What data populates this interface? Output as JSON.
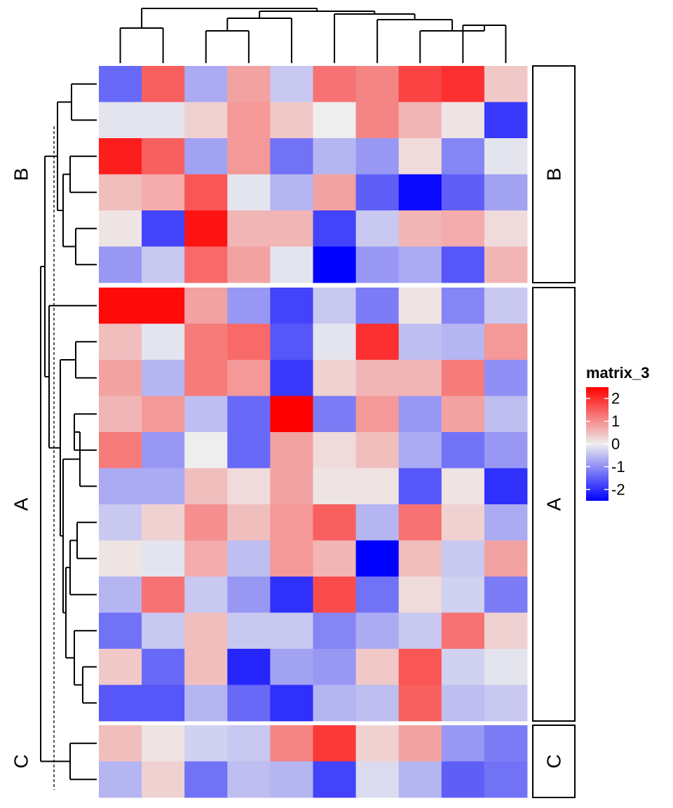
{
  "chart_data": {
    "type": "heatmap",
    "title": "",
    "n_columns": 10,
    "row_slices": [
      {
        "name": "B",
        "values": [
          [
            -1.4,
            1.5,
            -0.7,
            0.8,
            -0.4,
            1.3,
            1.1,
            1.8,
            2.0,
            0.4
          ],
          [
            -0.1,
            -0.1,
            0.3,
            0.9,
            0.4,
            0.0,
            1.1,
            0.6,
            0.1,
            -1.9
          ],
          [
            2.2,
            1.5,
            -0.8,
            0.9,
            -1.3,
            -0.6,
            -0.9,
            0.2,
            -1.1,
            -0.1
          ],
          [
            0.5,
            0.7,
            1.6,
            -0.1,
            -0.6,
            0.8,
            -1.5,
            -2.4,
            -1.5,
            -0.8
          ],
          [
            0.1,
            -1.8,
            2.3,
            0.6,
            0.6,
            -1.8,
            -0.4,
            0.6,
            0.7,
            0.2
          ],
          [
            -0.9,
            -0.4,
            1.4,
            0.8,
            -0.1,
            -2.5,
            -0.9,
            -0.7,
            -1.6,
            0.6
          ]
        ]
      },
      {
        "name": "A",
        "values": [
          [
            2.4,
            2.4,
            0.8,
            -0.9,
            -1.8,
            -0.4,
            -1.2,
            0.1,
            -1.1,
            -0.4
          ],
          [
            0.5,
            -0.1,
            1.2,
            1.4,
            -1.6,
            -0.1,
            2.0,
            -0.5,
            -0.6,
            0.9
          ],
          [
            0.8,
            -0.6,
            1.2,
            0.9,
            -1.9,
            0.3,
            0.6,
            0.6,
            1.2,
            -1.0
          ],
          [
            0.6,
            0.9,
            -0.5,
            -1.4,
            2.6,
            -1.2,
            0.9,
            -0.9,
            0.8,
            -0.5
          ],
          [
            1.2,
            -0.9,
            0.0,
            -1.4,
            0.8,
            0.2,
            0.5,
            -0.7,
            -1.3,
            -0.9
          ],
          [
            -0.7,
            -0.7,
            0.5,
            0.2,
            0.8,
            0.1,
            0.1,
            -1.6,
            0.1,
            -2.0
          ],
          [
            -0.4,
            0.3,
            1.0,
            0.5,
            0.9,
            1.5,
            -0.6,
            1.3,
            0.3,
            -0.7
          ],
          [
            0.1,
            -0.1,
            0.7,
            -0.5,
            0.9,
            0.6,
            -2.9,
            0.5,
            -0.4,
            0.8
          ],
          [
            -0.6,
            1.3,
            -0.4,
            -0.9,
            -2.0,
            1.7,
            -1.3,
            0.2,
            -0.3,
            -1.2
          ],
          [
            -1.3,
            -0.4,
            0.5,
            -0.4,
            -0.4,
            -1.1,
            -0.7,
            -0.4,
            1.3,
            0.3
          ],
          [
            0.4,
            -1.4,
            0.5,
            -2.1,
            -0.8,
            -0.9,
            0.4,
            1.6,
            -0.3,
            -0.1
          ],
          [
            -1.6,
            -1.6,
            -0.6,
            -1.4,
            -2.0,
            -0.6,
            -0.5,
            1.5,
            -0.5,
            -0.4
          ]
        ]
      },
      {
        "name": "C",
        "values": [
          [
            0.5,
            0.1,
            -0.3,
            -0.4,
            1.1,
            1.9,
            0.3,
            0.8,
            -0.9,
            -1.2
          ],
          [
            -0.6,
            0.3,
            -1.3,
            -0.5,
            -0.6,
            -1.8,
            -0.2,
            -0.6,
            -1.5,
            -1.3
          ]
        ]
      }
    ],
    "legend": {
      "title": "matrix_3",
      "ticks": [
        {
          "label": "2",
          "value": 2
        },
        {
          "label": "1",
          "value": 1
        },
        {
          "label": "0",
          "value": 0
        },
        {
          "label": "-1",
          "value": -1
        },
        {
          "label": "-2",
          "value": -2
        }
      ],
      "range": [
        -2.5,
        2.5
      ],
      "placement": "right"
    },
    "colors": {
      "low": "#0000ff",
      "mid": "#eeeeee",
      "high": "#ff0000"
    }
  }
}
